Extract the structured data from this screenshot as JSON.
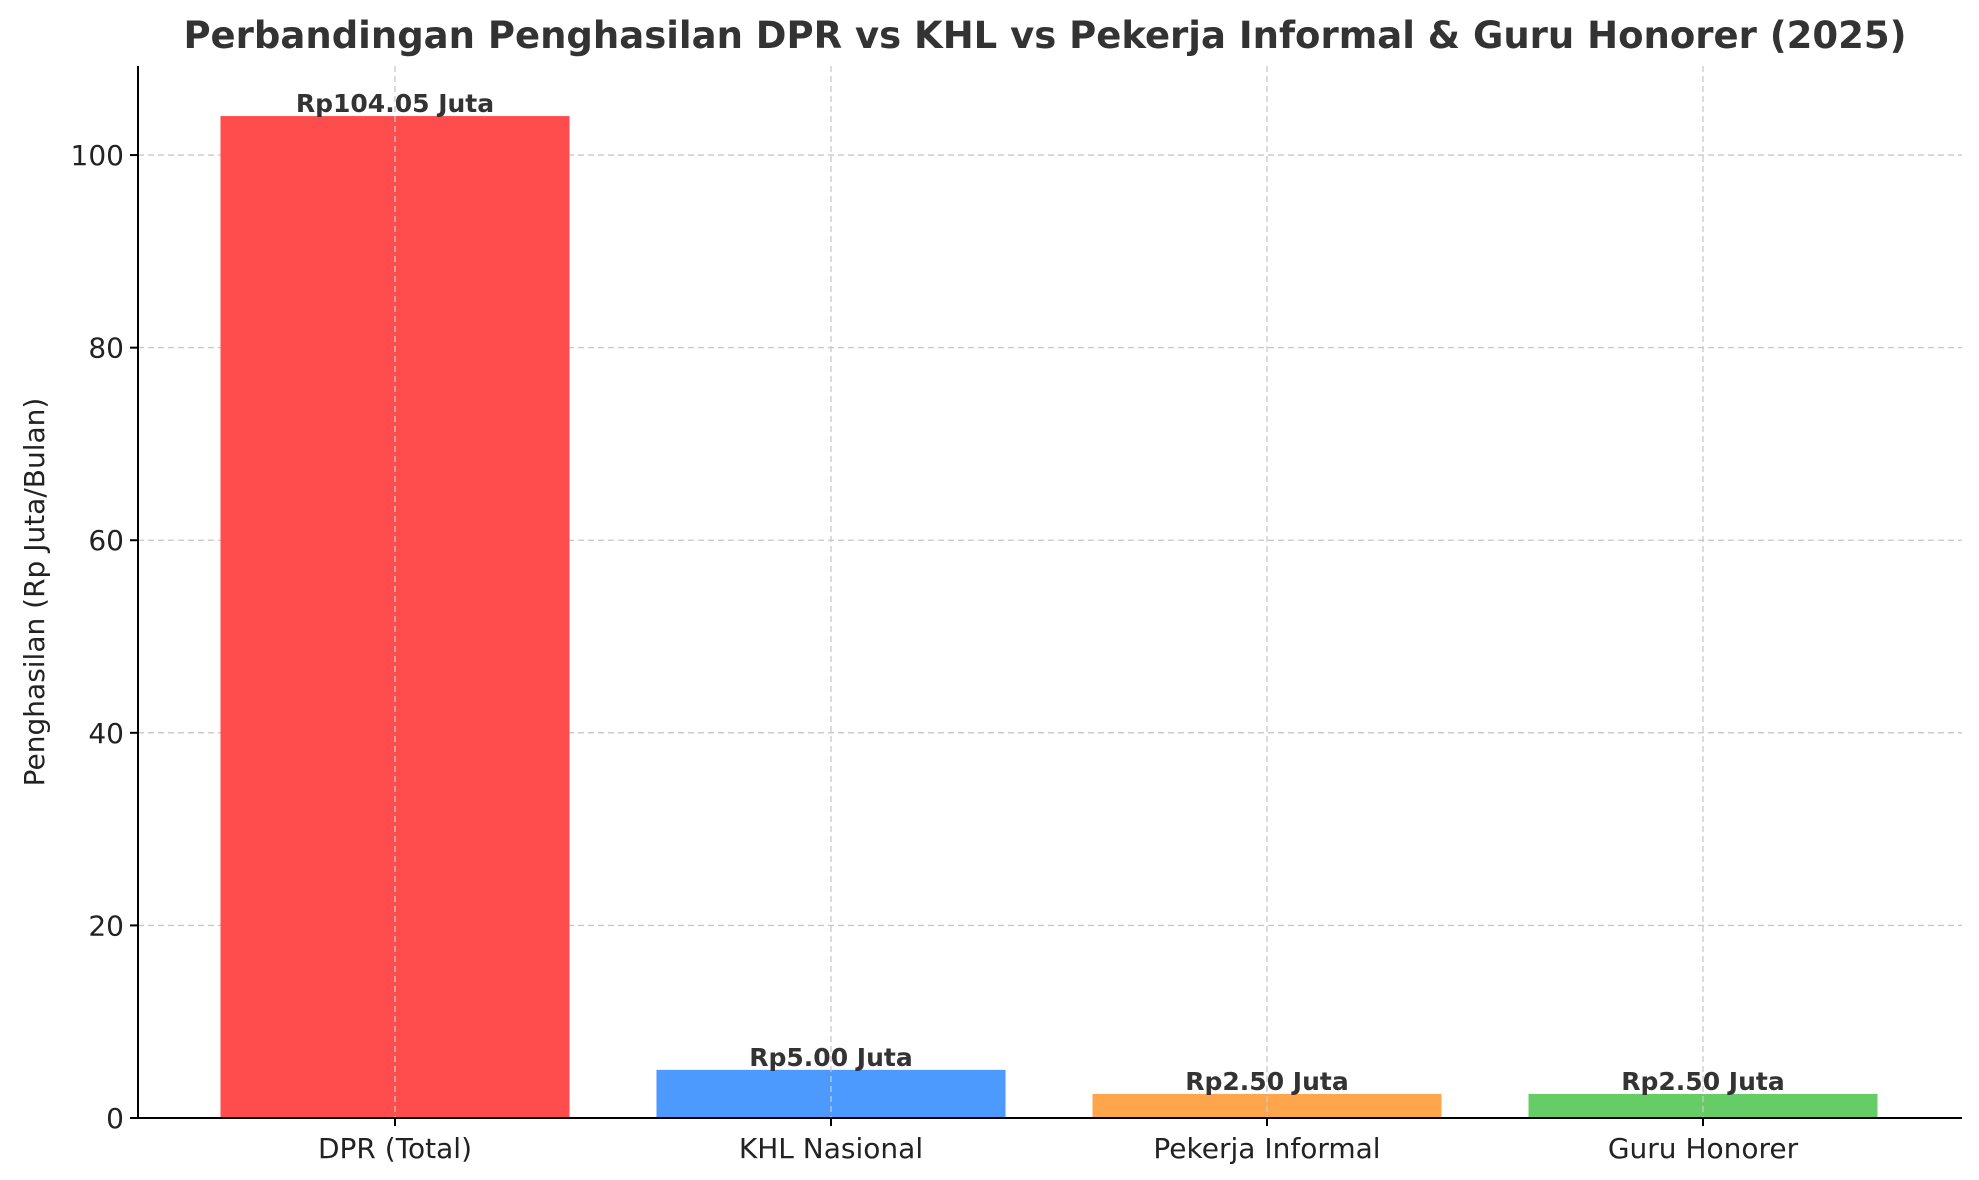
{
  "chart_data": {
    "type": "bar",
    "title": "Perbandingan Penghasilan DPR vs KHL vs Pekerja Informal & Guru Honorer (2025)",
    "xlabel": "",
    "ylabel": "Penghasilan (Rp Juta/Bulan)",
    "categories": [
      "DPR (Total)",
      "KHL Nasional",
      "Pekerja Informal",
      "Guru Honorer"
    ],
    "values": [
      104.05,
      5.0,
      2.5,
      2.5
    ],
    "data_labels": [
      "Rp104.05 Juta",
      "Rp5.00 Juta",
      "Rp2.50 Juta",
      "Rp2.50 Juta"
    ],
    "colors": [
      "#ff4d4d",
      "#4d9aff",
      "#ffa64d",
      "#66cc66"
    ],
    "ylim": [
      0,
      109.25
    ],
    "yticks": [
      0,
      20,
      40,
      60,
      80,
      100
    ],
    "grid": true,
    "legend": "none"
  }
}
